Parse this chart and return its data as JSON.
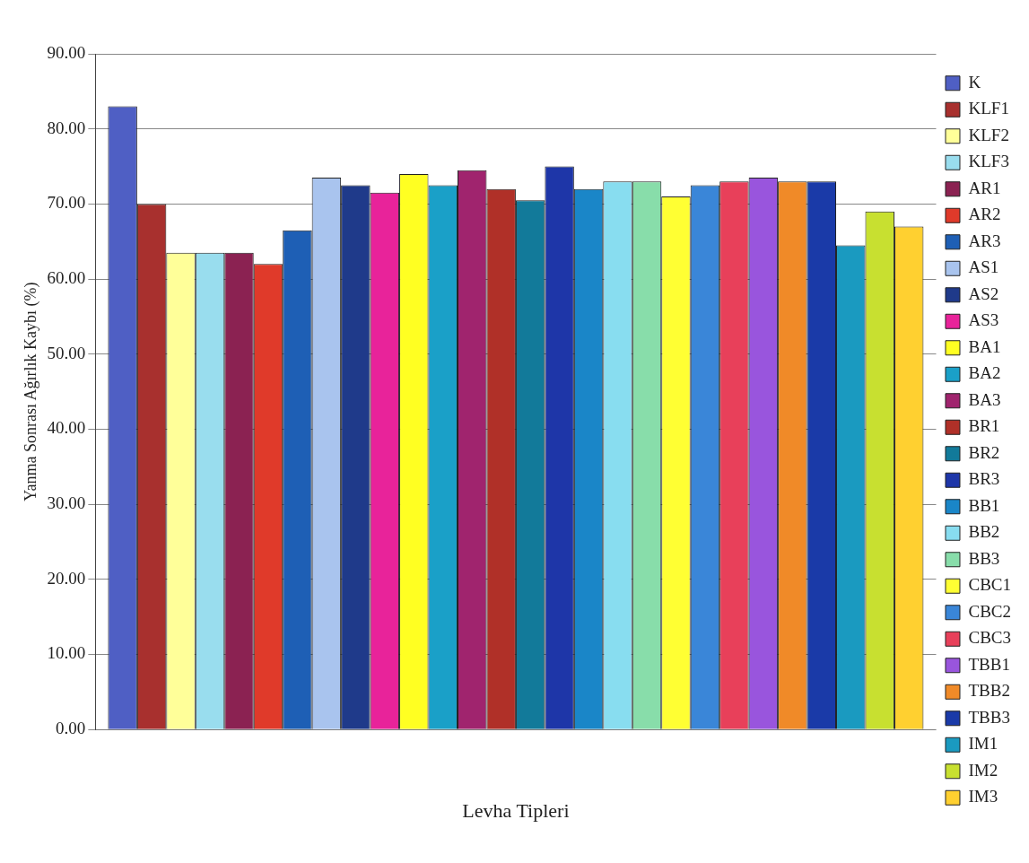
{
  "chart_data": {
    "type": "bar",
    "xlabel": "Levha Tipleri",
    "ylabel": "Yanma Sonrası Ağırlık Kaybı (%)",
    "categories": [
      null
    ],
    "series": [
      {
        "name": "K",
        "color": "#4f5fc4",
        "values": [
          83
        ]
      },
      {
        "name": "KLF1",
        "color": "#a8302e",
        "values": [
          70
        ]
      },
      {
        "name": "KLF2",
        "color": "#ffff99",
        "values": [
          63.5
        ]
      },
      {
        "name": "KLF3",
        "color": "#99ddee",
        "values": [
          63.5
        ]
      },
      {
        "name": "AR1",
        "color": "#8b2252",
        "values": [
          63.5
        ]
      },
      {
        "name": "AR2",
        "color": "#e03a2a",
        "values": [
          62
        ]
      },
      {
        "name": "AR3",
        "color": "#1e5fb5",
        "values": [
          66.5
        ]
      },
      {
        "name": "AS1",
        "color": "#a9c4ee",
        "values": [
          73.5
        ]
      },
      {
        "name": "AS2",
        "color": "#1f3a8a",
        "values": [
          72.5
        ]
      },
      {
        "name": "AS3",
        "color": "#e8239a",
        "values": [
          71.5
        ]
      },
      {
        "name": "BA1",
        "color": "#ffff22",
        "values": [
          74
        ]
      },
      {
        "name": "BA2",
        "color": "#1aa0c8",
        "values": [
          72.5
        ]
      },
      {
        "name": "BA3",
        "color": "#a0246e",
        "values": [
          74.5
        ]
      },
      {
        "name": "BR1",
        "color": "#b03028",
        "values": [
          72
        ]
      },
      {
        "name": "BR2",
        "color": "#127a9a",
        "values": [
          70.5
        ]
      },
      {
        "name": "BR3",
        "color": "#1e36a8",
        "values": [
          75
        ]
      },
      {
        "name": "BB1",
        "color": "#1a86c8",
        "values": [
          72
        ]
      },
      {
        "name": "BB2",
        "color": "#88ddf0",
        "values": [
          73
        ]
      },
      {
        "name": "BB3",
        "color": "#88ddaa",
        "values": [
          73
        ]
      },
      {
        "name": "CBC1",
        "color": "#ffff33",
        "values": [
          71
        ]
      },
      {
        "name": "CBC2",
        "color": "#3a86d8",
        "values": [
          72.5
        ]
      },
      {
        "name": "CBC3",
        "color": "#e8405a",
        "values": [
          73
        ]
      },
      {
        "name": "TBB1",
        "color": "#9955dd",
        "values": [
          73.5
        ]
      },
      {
        "name": "TBB2",
        "color": "#f08a28",
        "values": [
          73
        ]
      },
      {
        "name": "TBB3",
        "color": "#1a3aa8",
        "values": [
          73
        ]
      },
      {
        "name": "IM1",
        "color": "#1a9ac0",
        "values": [
          64.5
        ]
      },
      {
        "name": "IM2",
        "color": "#c8e030",
        "values": [
          69
        ]
      },
      {
        "name": "IM3",
        "color": "#ffd030",
        "values": [
          67
        ]
      }
    ],
    "ylim": [
      0,
      90
    ],
    "yticks": [
      {
        "value": 0,
        "label": "0.00"
      },
      {
        "value": 10,
        "label": "10.00"
      },
      {
        "value": 20,
        "label": "20.00"
      },
      {
        "value": 30,
        "label": "30.00"
      },
      {
        "value": 40,
        "label": "40.00"
      },
      {
        "value": 50,
        "label": "50.00"
      },
      {
        "value": 60,
        "label": "60.00"
      },
      {
        "value": 70,
        "label": "70.00"
      },
      {
        "value": 80,
        "label": "80.00"
      },
      {
        "value": 90,
        "label": "90.00"
      }
    ],
    "grid": "y",
    "legend": "right"
  }
}
